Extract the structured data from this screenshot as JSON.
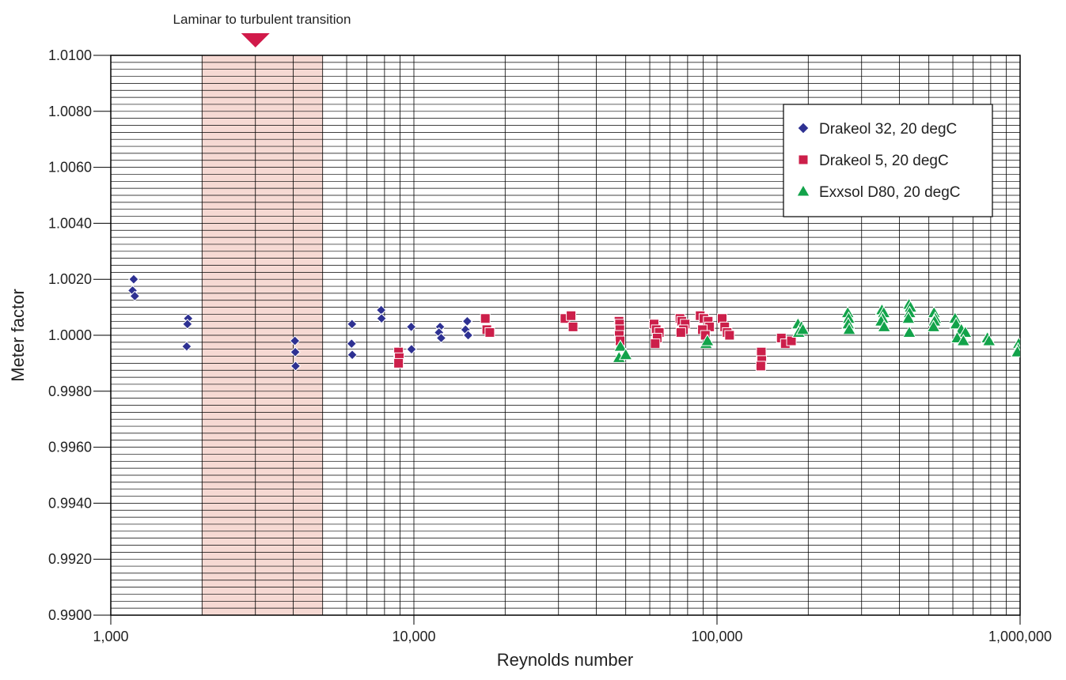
{
  "chart_data": {
    "type": "scatter",
    "title": "",
    "xlabel": "Reynolds number",
    "ylabel": "Meter factor",
    "x_scale": "log",
    "xlim": [
      1000,
      1000000
    ],
    "ylim": [
      0.99,
      1.01
    ],
    "x_ticks": [
      {
        "value": 1000,
        "label": "1,000"
      },
      {
        "value": 10000,
        "label": "10,000"
      },
      {
        "value": 100000,
        "label": "100,000"
      },
      {
        "value": 1000000,
        "label": "1,000,000"
      }
    ],
    "y_ticks": [
      {
        "value": 0.99,
        "label": "0.9900"
      },
      {
        "value": 0.992,
        "label": "0.9920"
      },
      {
        "value": 0.994,
        "label": "0.9940"
      },
      {
        "value": 0.996,
        "label": "0.9960"
      },
      {
        "value": 0.998,
        "label": "0.9980"
      },
      {
        "value": 1.0,
        "label": "1.0000"
      },
      {
        "value": 1.002,
        "label": "1.0020"
      },
      {
        "value": 1.004,
        "label": "1.0040"
      },
      {
        "value": 1.006,
        "label": "1.0060"
      },
      {
        "value": 1.008,
        "label": "1.0080"
      },
      {
        "value": 1.01,
        "label": "1.0100"
      }
    ],
    "grid": true,
    "legend_position": "top-right",
    "annotation": {
      "text": "Laminar to turbulent transition",
      "x_range": [
        2000,
        5000
      ],
      "marker_x": 3000,
      "color": "#f6d9d3",
      "marker_color": "#d11a4a"
    },
    "series": [
      {
        "name": "Drakeol 32, 20 degC",
        "marker": "diamond",
        "color": "#2e3192",
        "points": [
          [
            1190,
            1.002
          ],
          [
            1180,
            1.0016
          ],
          [
            1200,
            1.0014
          ],
          [
            1800,
            1.0006
          ],
          [
            1790,
            1.0004
          ],
          [
            1780,
            0.9996
          ],
          [
            4050,
            0.9998
          ],
          [
            4060,
            0.9994
          ],
          [
            4070,
            0.9989
          ],
          [
            6250,
            1.0004
          ],
          [
            6230,
            0.9997
          ],
          [
            6260,
            0.9993
          ],
          [
            7800,
            1.0009
          ],
          [
            7820,
            1.0006
          ],
          [
            9800,
            1.0003
          ],
          [
            9820,
            0.9995
          ],
          [
            12200,
            1.0003
          ],
          [
            12100,
            1.0001
          ],
          [
            12300,
            0.9999
          ],
          [
            15000,
            1.0005
          ],
          [
            14800,
            1.0002
          ],
          [
            15100,
            1.0
          ]
        ]
      },
      {
        "name": "Drakeol 5, 20 degC",
        "marker": "square",
        "color": "#cc1f4a",
        "points": [
          [
            8900,
            0.9994
          ],
          [
            8950,
            0.9992
          ],
          [
            8900,
            0.999
          ],
          [
            17200,
            1.0006
          ],
          [
            17400,
            1.0002
          ],
          [
            17800,
            1.0001
          ],
          [
            31500,
            1.0006
          ],
          [
            33000,
            1.0007
          ],
          [
            33500,
            1.0003
          ],
          [
            47500,
            1.0005
          ],
          [
            47700,
            1.0004
          ],
          [
            47800,
            1.0002
          ],
          [
            47600,
            1.0
          ],
          [
            47900,
            0.9998
          ],
          [
            62000,
            1.0004
          ],
          [
            63000,
            1.0002
          ],
          [
            64500,
            1.0001
          ],
          [
            63500,
            0.9999
          ],
          [
            62500,
            0.9997
          ],
          [
            75500,
            1.0006
          ],
          [
            76500,
            1.0005
          ],
          [
            78500,
            1.0004
          ],
          [
            77500,
            1.0002
          ],
          [
            76000,
            1.0001
          ],
          [
            88000,
            1.0007
          ],
          [
            90500,
            1.0006
          ],
          [
            93500,
            1.0005
          ],
          [
            94500,
            1.0003
          ],
          [
            89500,
            1.0002
          ],
          [
            91500,
            1.0
          ],
          [
            104000,
            1.0006
          ],
          [
            106000,
            1.0003
          ],
          [
            108000,
            1.0001
          ],
          [
            110000,
            1.0
          ],
          [
            140000,
            0.9994
          ],
          [
            140500,
            0.9991
          ],
          [
            139500,
            0.9989
          ],
          [
            163000,
            0.9999
          ],
          [
            168000,
            0.9997
          ],
          [
            176000,
            0.9998
          ]
        ]
      },
      {
        "name": "Exxsol D80, 20 degC",
        "marker": "triangle",
        "color": "#12a34a",
        "points": [
          [
            48000,
            0.9996
          ],
          [
            47500,
            0.9992
          ],
          [
            50000,
            0.9993
          ],
          [
            92000,
            0.9997
          ],
          [
            93000,
            0.9998
          ],
          [
            185000,
            1.0004
          ],
          [
            190000,
            1.0003
          ],
          [
            186000,
            1.0001
          ],
          [
            192000,
            1.0002
          ],
          [
            270000,
            1.0008
          ],
          [
            272000,
            1.0006
          ],
          [
            271000,
            1.0004
          ],
          [
            273000,
            1.0002
          ],
          [
            350000,
            1.0009
          ],
          [
            355000,
            1.0008
          ],
          [
            352000,
            1.0006
          ],
          [
            348000,
            1.0005
          ],
          [
            356000,
            1.0003
          ],
          [
            430000,
            1.0011
          ],
          [
            435000,
            1.001
          ],
          [
            432000,
            1.0008
          ],
          [
            428000,
            1.0006
          ],
          [
            431000,
            1.0001
          ],
          [
            520000,
            1.0008
          ],
          [
            525000,
            1.0006
          ],
          [
            522000,
            1.0005
          ],
          [
            518000,
            1.0003
          ],
          [
            610000,
            1.0006
          ],
          [
            615000,
            1.0004
          ],
          [
            640000,
            1.0002
          ],
          [
            660000,
            1.0001
          ],
          [
            620000,
            0.9999
          ],
          [
            650000,
            0.9998
          ],
          [
            780000,
            0.9999
          ],
          [
            790000,
            0.9998
          ],
          [
            990000,
            0.9997
          ],
          [
            985000,
            0.9995
          ],
          [
            980000,
            0.9994
          ]
        ]
      }
    ]
  }
}
